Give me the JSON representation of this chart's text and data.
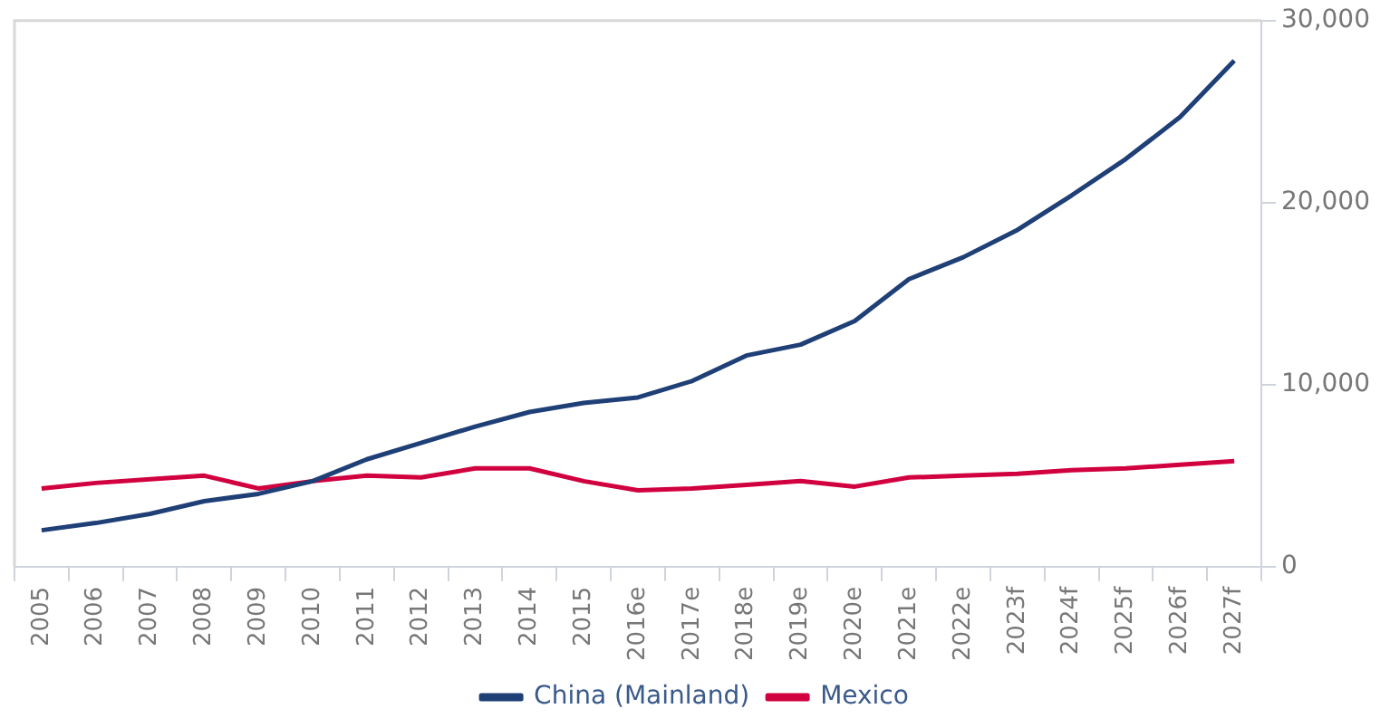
{
  "chart_data": {
    "type": "line",
    "categories": [
      "2005",
      "2006",
      "2007",
      "2008",
      "2009",
      "2010",
      "2011",
      "2012",
      "2013",
      "2014",
      "2015",
      "2016e",
      "2017e",
      "2018e",
      "2019e",
      "2020e",
      "2021e",
      "2022e",
      "2023f",
      "2024f",
      "2025f",
      "2026f",
      "2027f"
    ],
    "series": [
      {
        "name": "China (Mainland)",
        "color": "#1f3f77",
        "values": [
          2000,
          2400,
          2900,
          3600,
          4000,
          4700,
          5900,
          6800,
          7700,
          8500,
          9000,
          9300,
          10200,
          11600,
          12200,
          13500,
          15800,
          17000,
          18500,
          20400,
          22400,
          24700,
          27800
        ]
      },
      {
        "name": "Mexico",
        "color": "#d1003f",
        "values": [
          4300,
          4600,
          4800,
          5000,
          4300,
          4700,
          5000,
          4900,
          5400,
          5400,
          4700,
          4200,
          4300,
          4500,
          4700,
          4400,
          4900,
          5000,
          5100,
          5300,
          5400,
          5600,
          5800
        ]
      }
    ],
    "ylim": [
      0,
      30000
    ],
    "yticks": [
      {
        "value": 0,
        "label": "0"
      },
      {
        "value": 10000,
        "label": "10,000"
      },
      {
        "value": 20000,
        "label": "20,000"
      },
      {
        "value": 30000,
        "label": "30,000"
      }
    ],
    "grid": false,
    "legend": "bottom",
    "marker": "none",
    "line_style": "solid"
  }
}
